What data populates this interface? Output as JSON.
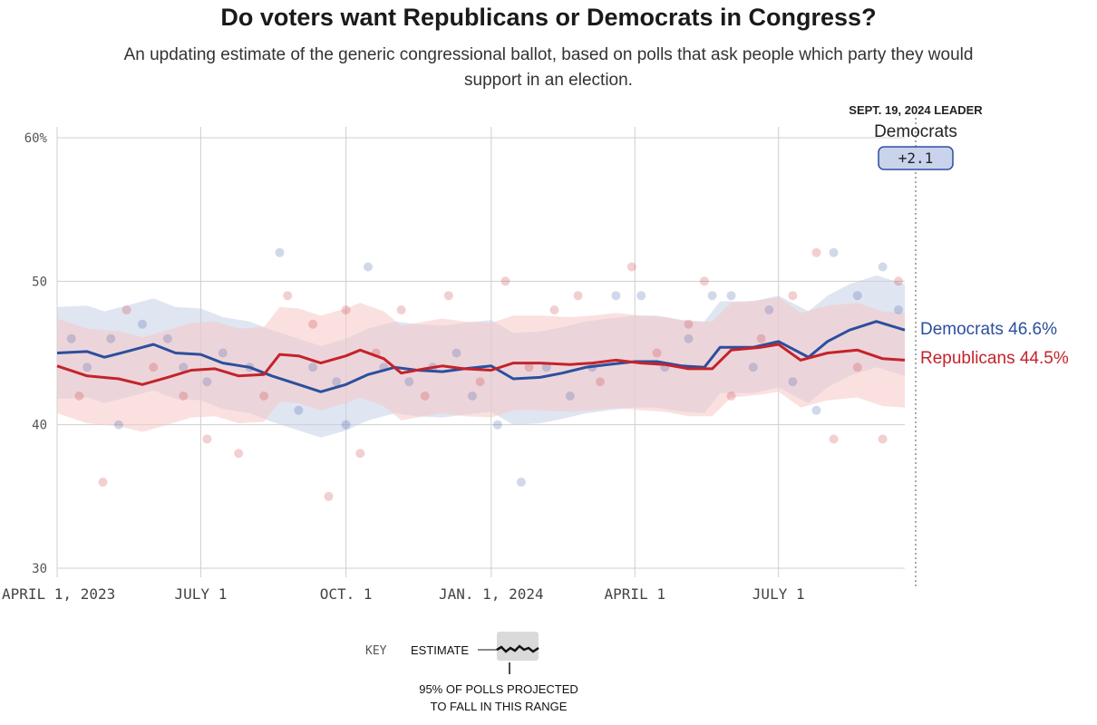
{
  "header": {
    "title": "Do voters want Republicans or Democrats in Congress?",
    "subtitle": "An updating estimate of the generic congressional ballot, based on polls that ask people which party they would support in an election."
  },
  "leader": {
    "heading": "SEPT. 19, 2024 LEADER",
    "party": "Democrats",
    "margin": "+2.1"
  },
  "end_labels": {
    "dem": "Democrats 46.6%",
    "rep": "Republicans 44.5%"
  },
  "key": {
    "label": "KEY",
    "estimate": "ESTIMATE",
    "range_note_1": "95% OF POLLS PROJECTED",
    "range_note_2": "TO FALL IN THIS RANGE"
  },
  "colors": {
    "dem": "#2c4f9e",
    "rep": "#c4232b",
    "dem_band": "#c5cfe6",
    "rep_band": "#f5c9c7",
    "grid": "#cfcfcf"
  },
  "chart_data": {
    "type": "line",
    "x_start": "2023-04-01",
    "x_end": "2024-09-19",
    "ylim": [
      30,
      60
    ],
    "yticks": [
      {
        "value": 60,
        "label": "60%"
      },
      {
        "value": 50,
        "label": "50"
      },
      {
        "value": 40,
        "label": "40"
      },
      {
        "value": 30,
        "label": "30"
      }
    ],
    "xticks": [
      {
        "date": "2023-04-01",
        "label": "APRIL 1, 2023"
      },
      {
        "date": "2023-07-01",
        "label": "JULY 1"
      },
      {
        "date": "2023-10-01",
        "label": "OCT. 1"
      },
      {
        "date": "2024-01-01",
        "label": "JAN. 1, 2024"
      },
      {
        "date": "2024-04-01",
        "label": "APRIL 1"
      },
      {
        "date": "2024-07-01",
        "label": "JULY 1"
      }
    ],
    "grid": true,
    "series": [
      {
        "name": "Democrats",
        "color": "#2c4f9e",
        "band_halfwidth": 3.2,
        "final": 46.6,
        "points": [
          [
            "2023-04-01",
            45.0
          ],
          [
            "2023-04-20",
            45.1
          ],
          [
            "2023-05-01",
            44.7
          ],
          [
            "2023-05-15",
            45.1
          ],
          [
            "2023-06-01",
            45.6
          ],
          [
            "2023-06-15",
            45.0
          ],
          [
            "2023-07-01",
            44.9
          ],
          [
            "2023-07-15",
            44.3
          ],
          [
            "2023-08-01",
            44.0
          ],
          [
            "2023-08-15",
            43.4
          ],
          [
            "2023-09-01",
            42.8
          ],
          [
            "2023-09-15",
            42.3
          ],
          [
            "2023-10-01",
            42.8
          ],
          [
            "2023-10-15",
            43.5
          ],
          [
            "2023-11-01",
            44.0
          ],
          [
            "2023-11-15",
            43.8
          ],
          [
            "2023-12-01",
            43.7
          ],
          [
            "2023-12-15",
            43.9
          ],
          [
            "2024-01-01",
            44.1
          ],
          [
            "2024-01-15",
            43.2
          ],
          [
            "2024-02-01",
            43.3
          ],
          [
            "2024-02-15",
            43.6
          ],
          [
            "2024-03-01",
            44.0
          ],
          [
            "2024-03-15",
            44.2
          ],
          [
            "2024-04-01",
            44.4
          ],
          [
            "2024-04-15",
            44.4
          ],
          [
            "2024-05-01",
            44.1
          ],
          [
            "2024-05-15",
            44.0
          ],
          [
            "2024-05-25",
            45.4
          ],
          [
            "2024-06-15",
            45.4
          ],
          [
            "2024-07-01",
            45.8
          ],
          [
            "2024-07-20",
            44.7
          ],
          [
            "2024-08-01",
            45.8
          ],
          [
            "2024-08-15",
            46.6
          ],
          [
            "2024-09-01",
            47.2
          ],
          [
            "2024-09-19",
            46.6
          ]
        ],
        "polls": [
          [
            "2023-04-10",
            46
          ],
          [
            "2023-04-20",
            44
          ],
          [
            "2023-05-05",
            46
          ],
          [
            "2023-05-10",
            40
          ],
          [
            "2023-05-25",
            47
          ],
          [
            "2023-06-10",
            46
          ],
          [
            "2023-06-20",
            44
          ],
          [
            "2023-07-05",
            43
          ],
          [
            "2023-07-15",
            45
          ],
          [
            "2023-08-01",
            44
          ],
          [
            "2023-08-20",
            52
          ],
          [
            "2023-09-01",
            41
          ],
          [
            "2023-09-10",
            44
          ],
          [
            "2023-09-25",
            43
          ],
          [
            "2023-10-01",
            40
          ],
          [
            "2023-10-15",
            51
          ],
          [
            "2023-10-25",
            44
          ],
          [
            "2023-11-10",
            43
          ],
          [
            "2023-11-25",
            44
          ],
          [
            "2023-12-10",
            45
          ],
          [
            "2023-12-20",
            42
          ],
          [
            "2024-01-05",
            40
          ],
          [
            "2024-01-20",
            36
          ],
          [
            "2024-02-05",
            44
          ],
          [
            "2024-02-20",
            42
          ],
          [
            "2024-03-05",
            44
          ],
          [
            "2024-03-20",
            49
          ],
          [
            "2024-04-05",
            49
          ],
          [
            "2024-04-20",
            44
          ],
          [
            "2024-05-05",
            46
          ],
          [
            "2024-05-20",
            49
          ],
          [
            "2024-06-01",
            49
          ],
          [
            "2024-06-15",
            44
          ],
          [
            "2024-06-25",
            48
          ],
          [
            "2024-07-10",
            43
          ],
          [
            "2024-07-25",
            41
          ],
          [
            "2024-08-05",
            52
          ],
          [
            "2024-08-20",
            49
          ],
          [
            "2024-09-05",
            51
          ],
          [
            "2024-09-15",
            48
          ]
        ]
      },
      {
        "name": "Republicans",
        "color": "#c4232b",
        "band_halfwidth": 3.3,
        "final": 44.5,
        "points": [
          [
            "2023-04-01",
            44.1
          ],
          [
            "2023-04-20",
            43.4
          ],
          [
            "2023-05-10",
            43.2
          ],
          [
            "2023-05-25",
            42.8
          ],
          [
            "2023-06-10",
            43.3
          ],
          [
            "2023-06-25",
            43.8
          ],
          [
            "2023-07-10",
            43.9
          ],
          [
            "2023-07-25",
            43.4
          ],
          [
            "2023-08-10",
            43.5
          ],
          [
            "2023-08-20",
            44.9
          ],
          [
            "2023-09-01",
            44.8
          ],
          [
            "2023-09-15",
            44.3
          ],
          [
            "2023-10-01",
            44.8
          ],
          [
            "2023-10-10",
            45.2
          ],
          [
            "2023-10-25",
            44.6
          ],
          [
            "2023-11-05",
            43.6
          ],
          [
            "2023-11-20",
            43.9
          ],
          [
            "2023-12-01",
            44.1
          ],
          [
            "2023-12-15",
            43.9
          ],
          [
            "2024-01-01",
            43.8
          ],
          [
            "2024-01-15",
            44.3
          ],
          [
            "2024-02-01",
            44.3
          ],
          [
            "2024-02-20",
            44.2
          ],
          [
            "2024-03-05",
            44.3
          ],
          [
            "2024-03-20",
            44.5
          ],
          [
            "2024-04-05",
            44.3
          ],
          [
            "2024-04-20",
            44.2
          ],
          [
            "2024-05-05",
            43.9
          ],
          [
            "2024-05-20",
            43.9
          ],
          [
            "2024-06-01",
            45.2
          ],
          [
            "2024-06-20",
            45.4
          ],
          [
            "2024-07-01",
            45.6
          ],
          [
            "2024-07-15",
            44.5
          ],
          [
            "2024-08-01",
            45.0
          ],
          [
            "2024-08-20",
            45.2
          ],
          [
            "2024-09-05",
            44.6
          ],
          [
            "2024-09-19",
            44.5
          ]
        ],
        "polls": [
          [
            "2023-04-15",
            42
          ],
          [
            "2023-04-30",
            36
          ],
          [
            "2023-05-15",
            48
          ],
          [
            "2023-06-01",
            44
          ],
          [
            "2023-06-20",
            42
          ],
          [
            "2023-07-05",
            39
          ],
          [
            "2023-07-25",
            38
          ],
          [
            "2023-08-10",
            42
          ],
          [
            "2023-08-25",
            49
          ],
          [
            "2023-09-10",
            47
          ],
          [
            "2023-09-20",
            35
          ],
          [
            "2023-10-01",
            48
          ],
          [
            "2023-10-10",
            38
          ],
          [
            "2023-10-20",
            45
          ],
          [
            "2023-11-05",
            48
          ],
          [
            "2023-11-20",
            42
          ],
          [
            "2023-12-05",
            49
          ],
          [
            "2023-12-25",
            43
          ],
          [
            "2024-01-10",
            50
          ],
          [
            "2024-01-25",
            44
          ],
          [
            "2024-02-10",
            48
          ],
          [
            "2024-02-25",
            49
          ],
          [
            "2024-03-10",
            43
          ],
          [
            "2024-03-30",
            51
          ],
          [
            "2024-04-15",
            45
          ],
          [
            "2024-05-05",
            47
          ],
          [
            "2024-05-15",
            50
          ],
          [
            "2024-06-01",
            42
          ],
          [
            "2024-06-20",
            46
          ],
          [
            "2024-07-10",
            49
          ],
          [
            "2024-07-25",
            52
          ],
          [
            "2024-08-05",
            39
          ],
          [
            "2024-08-20",
            44
          ],
          [
            "2024-09-05",
            39
          ],
          [
            "2024-09-15",
            50
          ]
        ]
      }
    ]
  }
}
